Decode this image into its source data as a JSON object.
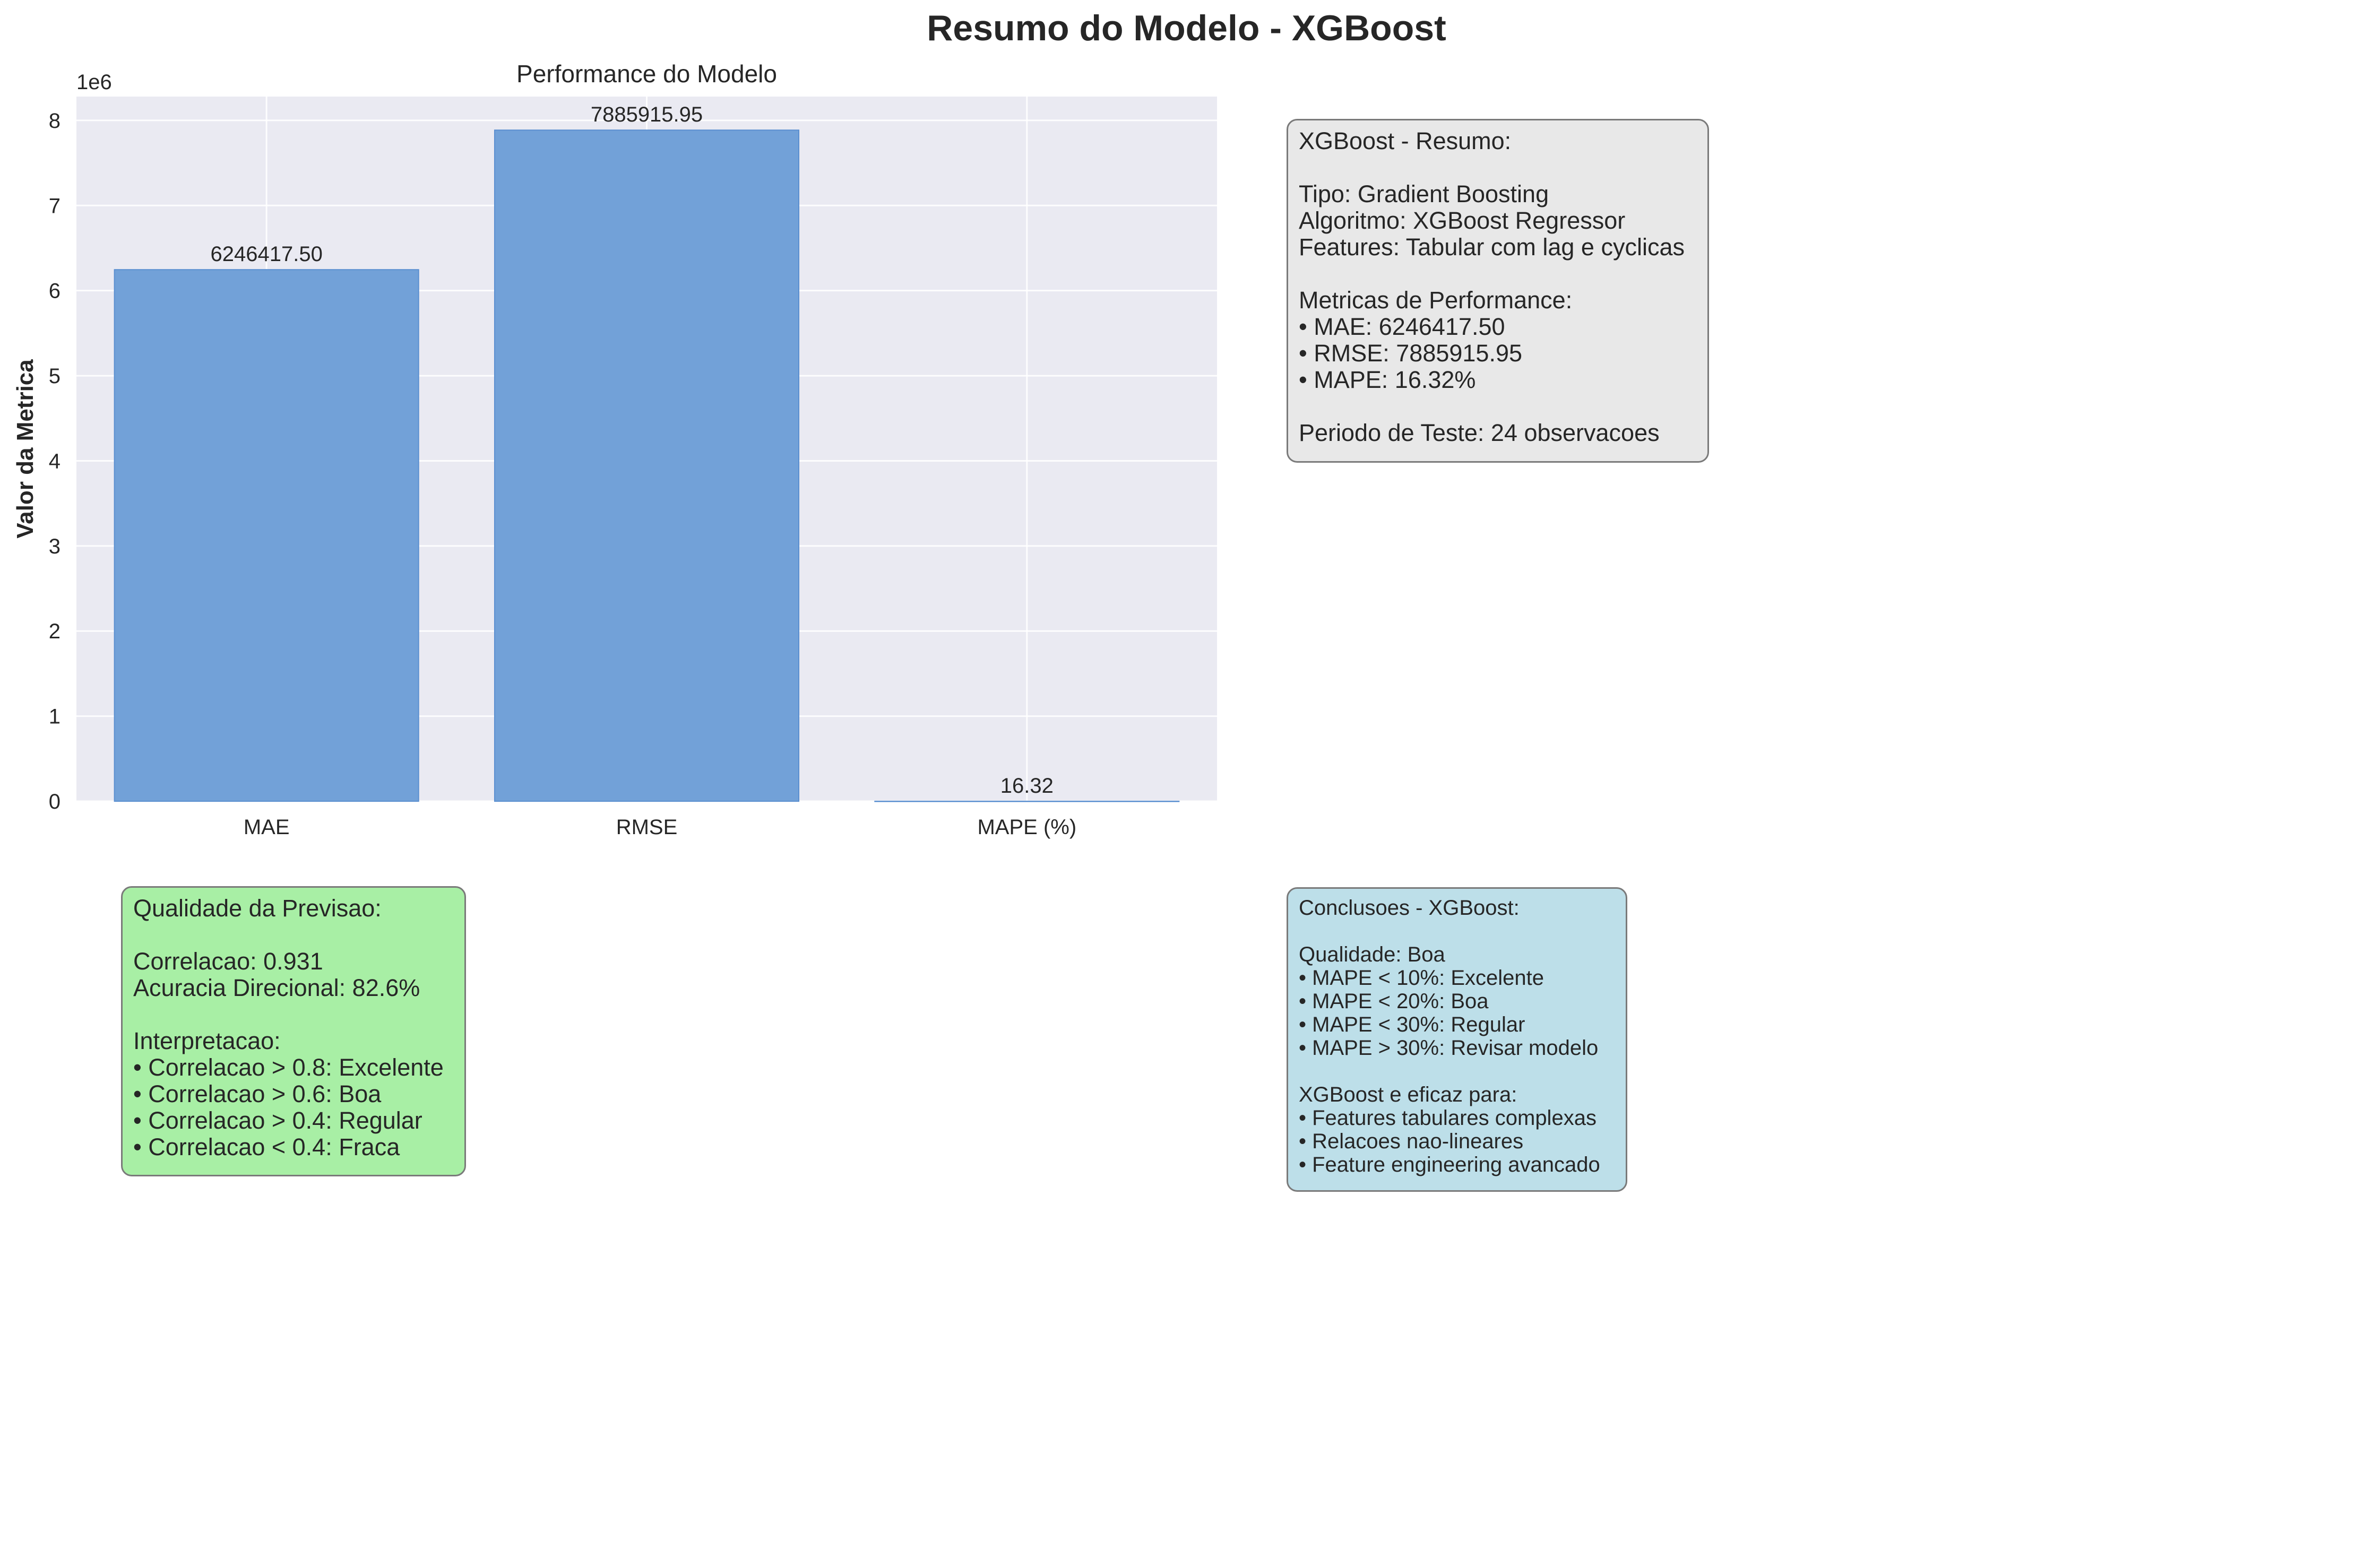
{
  "suptitle": "Resumo do Modelo - XGBoost",
  "chart_data": {
    "type": "bar",
    "title": "Performance do Modelo",
    "xlabel": "",
    "ylabel": "Valor da Metrica",
    "offset_text": "1e6",
    "categories": [
      "MAE",
      "RMSE",
      "MAPE (%)"
    ],
    "values": [
      6246417.5,
      7885915.95,
      16.32
    ],
    "value_labels": [
      "6246417.50",
      "7885915.95",
      "16.32"
    ],
    "yticks": [
      0,
      1,
      2,
      3,
      4,
      5,
      6,
      7,
      8
    ],
    "ylim": [
      0,
      8280000
    ],
    "grid": true,
    "legend": "none",
    "colors": {
      "bar": "#72a1d8",
      "bar_edge": "#5b8fd0",
      "plot_bg": "#eaeaf2",
      "grid": "#ffffff"
    }
  },
  "boxes": {
    "summary": "XGBoost - Resumo:\n\nTipo: Gradient Boosting\nAlgoritmo: XGBoost Regressor\nFeatures: Tabular com lag e cyclicas\n\nMetricas de Performance:\n• MAE: 6246417.50\n• RMSE: 7885915.95\n• MAPE: 16.32%\n\nPeriodo de Teste: 24 observacoes",
    "quality": "Qualidade da Previsao:\n\nCorrelacao: 0.931\nAcuracia Direcional: 82.6%\n\nInterpretacao:\n• Correlacao > 0.8: Excelente\n• Correlacao > 0.6: Boa\n• Correlacao > 0.4: Regular\n• Correlacao < 0.4: Fraca",
    "conclusions": "Conclusoes - XGBoost:\n\nQualidade: Boa\n• MAPE < 10%: Excelente\n• MAPE < 20%: Boa\n• MAPE < 30%: Regular\n• MAPE > 30%: Revisar modelo\n\nXGBoost e eficaz para:\n• Features tabulares complexas\n• Relacoes nao-lineares\n• Feature engineering avancado",
    "colors": {
      "summary": "#e8e8e8",
      "quality": "#a8efa5",
      "conclusions": "#bddfe9"
    }
  }
}
